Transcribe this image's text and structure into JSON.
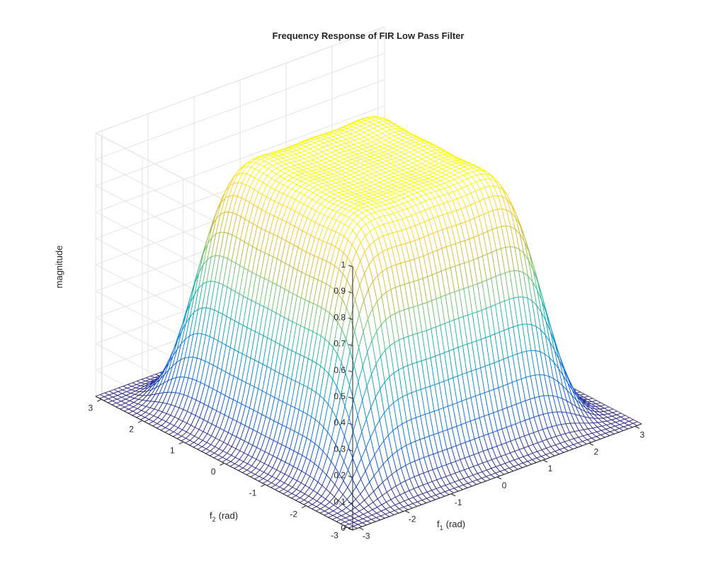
{
  "chart_data": {
    "type": "surface",
    "title": "Frequency Response of FIR Low Pass Filter",
    "xlabel": "f",
    "xlabel_sub": "1",
    "xlabel_unit": "(rad)",
    "ylabel": "f",
    "ylabel_sub": "2",
    "ylabel_unit": "(rad)",
    "zlabel": "magnitude",
    "xlim": [
      -3.1416,
      3.1416
    ],
    "ylim": [
      -3.1416,
      3.1416
    ],
    "zlim": [
      0,
      1
    ],
    "x_ticks": [
      "-3",
      "-2",
      "-1",
      "0",
      "1",
      "2",
      "3"
    ],
    "y_ticks": [
      "-3",
      "-2",
      "-1",
      "0",
      "1",
      "2",
      "3"
    ],
    "z_ticks": [
      "0",
      "0.1",
      "0.2",
      "0.3",
      "0.4",
      "0.5",
      "0.6",
      "0.7",
      "0.8",
      "0.9",
      "1"
    ],
    "grid": true,
    "colormap": "parula",
    "peak": {
      "x": 0,
      "y": 0,
      "z": 0.93
    },
    "mesh_points_per_axis": 64
  }
}
